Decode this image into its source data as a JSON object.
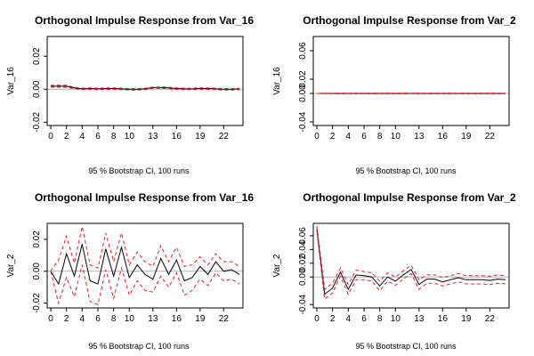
{
  "chart_data": [
    {
      "type": "line",
      "title": "Orthogonal Impulse Response from Var_16",
      "ylabel": "Var_16",
      "xlabel": "95 % Bootstrap CI,  100 runs",
      "x": [
        0,
        1,
        2,
        3,
        4,
        5,
        6,
        7,
        8,
        9,
        10,
        11,
        12,
        13,
        14,
        15,
        16,
        17,
        18,
        19,
        20,
        21,
        22,
        23,
        24
      ],
      "xticks": [
        0,
        2,
        4,
        6,
        8,
        10,
        13,
        16,
        19,
        22
      ],
      "xlim": [
        0,
        24
      ],
      "ylim": [
        -0.022,
        0.032
      ],
      "yticks": [
        -0.02,
        0.0,
        0.02
      ],
      "ytick_labels": [
        "-0.02",
        "0.00",
        "0.02"
      ],
      "zero_line": true,
      "series": [
        {
          "role": "response",
          "color": "#000000",
          "values": [
            0.0018,
            0.0018,
            0.0018,
            0.0008,
            0.0002,
            0.0004,
            0.0002,
            0.0004,
            0.0004,
            0.0002,
            0.0,
            0.0,
            0.0002,
            0.001,
            0.001,
            0.0008,
            0.0004,
            0.0002,
            0.0002,
            0.0004,
            0.0004,
            0.0002,
            0.0,
            0.0,
            0.0002
          ]
        },
        {
          "role": "upper",
          "color": "#e8202a",
          "values": [
            0.0024,
            0.0024,
            0.0024,
            0.0012,
            0.0006,
            0.0008,
            0.0006,
            0.0008,
            0.0008,
            0.0006,
            0.0004,
            0.0004,
            0.0006,
            0.0014,
            0.0014,
            0.0012,
            0.0008,
            0.0006,
            0.0006,
            0.0008,
            0.0008,
            0.0006,
            0.0004,
            0.0004,
            0.0006
          ]
        },
        {
          "role": "lower",
          "color": "#e8202a",
          "values": [
            0.0012,
            0.0012,
            0.0012,
            0.0003,
            -0.0003,
            -0.0001,
            -0.0003,
            -0.0001,
            -0.0001,
            -0.0003,
            -0.0005,
            -0.0005,
            -0.0003,
            0.0005,
            0.0005,
            0.0003,
            -0.0001,
            -0.0003,
            -0.0003,
            -0.0001,
            -0.0001,
            -0.0003,
            -0.0005,
            -0.0005,
            -0.0003
          ]
        }
      ]
    },
    {
      "type": "line",
      "title": "Orthogonal Impulse Response from Var_2",
      "ylabel": "Var_16",
      "xlabel": "95 % Bootstrap CI,  100 runs",
      "x": [
        0,
        1,
        2,
        3,
        4,
        5,
        6,
        7,
        8,
        9,
        10,
        11,
        12,
        13,
        14,
        15,
        16,
        17,
        18,
        19,
        20,
        21,
        22,
        23,
        24
      ],
      "xticks": [
        0,
        2,
        4,
        6,
        8,
        10,
        13,
        16,
        19,
        22
      ],
      "xlim": [
        0,
        24
      ],
      "ylim": [
        -0.045,
        0.08
      ],
      "yticks": [
        -0.04,
        0.0,
        0.02,
        0.06
      ],
      "ytick_labels": [
        "-0.04",
        "0.00",
        "0.02",
        "0.06"
      ],
      "zero_line": true,
      "series": [
        {
          "role": "response",
          "color": "#000000",
          "values": [
            0.0,
            0.0,
            0.0,
            0.0,
            0.0,
            0.0,
            0.0,
            0.0,
            0.0,
            0.0,
            0.0,
            0.0,
            0.0,
            0.0,
            0.0,
            0.0,
            0.0,
            0.0,
            0.0,
            0.0,
            0.0,
            0.0,
            0.0,
            0.0,
            0.0
          ]
        },
        {
          "role": "upper",
          "color": "#e8202a",
          "values": [
            0.0,
            0.0004,
            0.0004,
            0.0005,
            0.0004,
            0.0005,
            0.0004,
            0.0005,
            0.0004,
            0.0005,
            0.0004,
            0.0005,
            0.0004,
            0.0005,
            0.0004,
            0.0005,
            0.0004,
            0.0005,
            0.0004,
            0.0005,
            0.0004,
            0.0005,
            0.0004,
            0.0005,
            0.0004
          ]
        },
        {
          "role": "lower",
          "color": "#e8202a",
          "values": [
            0.0,
            -0.0004,
            -0.0004,
            -0.0005,
            -0.0004,
            -0.0005,
            -0.0004,
            -0.0005,
            -0.0004,
            -0.0005,
            -0.0004,
            -0.0005,
            -0.0004,
            -0.0005,
            -0.0004,
            -0.0005,
            -0.0004,
            -0.0005,
            -0.0004,
            -0.0005,
            -0.0004,
            -0.0005,
            -0.0004,
            -0.0005,
            -0.0004
          ]
        }
      ]
    },
    {
      "type": "line",
      "title": "Orthogonal Impulse Response from Var_16",
      "ylabel": "Var_2",
      "xlabel": "95 % Bootstrap CI,  100 runs",
      "x": [
        0,
        1,
        2,
        3,
        4,
        5,
        6,
        7,
        8,
        9,
        10,
        11,
        12,
        13,
        14,
        15,
        16,
        17,
        18,
        19,
        20,
        21,
        22,
        23,
        24
      ],
      "xticks": [
        0,
        2,
        4,
        6,
        8,
        10,
        13,
        16,
        19,
        22
      ],
      "xlim": [
        0,
        24
      ],
      "ylim": [
        -0.023,
        0.03
      ],
      "yticks": [
        -0.02,
        0.0,
        0.02
      ],
      "ytick_labels": [
        "-0.02",
        "0.00",
        "0.02"
      ],
      "zero_line": true,
      "series": [
        {
          "role": "response",
          "color": "#000000",
          "values": [
            0.0,
            -0.008,
            0.011,
            -0.003,
            0.017,
            -0.006,
            -0.008,
            0.014,
            -0.003,
            0.015,
            -0.004,
            0.004,
            -0.002,
            -0.005,
            0.008,
            -0.002,
            0.007,
            -0.006,
            -0.004,
            0.003,
            -0.002,
            0.006,
            0.0,
            0.001,
            -0.002
          ]
        },
        {
          "role": "upper",
          "color": "#e8202a",
          "values": [
            0.0,
            0.007,
            0.022,
            0.005,
            0.028,
            0.004,
            0.002,
            0.024,
            0.006,
            0.024,
            0.004,
            0.012,
            0.006,
            0.003,
            0.016,
            0.006,
            0.015,
            0.003,
            0.004,
            0.009,
            0.004,
            0.011,
            0.006,
            0.006,
            0.003
          ]
        },
        {
          "role": "lower",
          "color": "#e8202a",
          "values": [
            0.0,
            -0.02,
            -0.004,
            -0.016,
            0.004,
            -0.019,
            -0.021,
            0.001,
            -0.017,
            0.002,
            -0.015,
            -0.006,
            -0.012,
            -0.013,
            -0.003,
            -0.01,
            -0.001,
            -0.015,
            -0.012,
            -0.005,
            -0.009,
            -0.001,
            -0.006,
            -0.005,
            -0.008
          ]
        }
      ]
    },
    {
      "type": "line",
      "title": "Orthogonal Impulse Response from Var_2",
      "ylabel": "Var_2",
      "xlabel": "95 % Bootstrap CI,  100 runs",
      "x": [
        0,
        1,
        2,
        3,
        4,
        5,
        6,
        7,
        8,
        9,
        10,
        11,
        12,
        13,
        14,
        15,
        16,
        17,
        18,
        19,
        20,
        21,
        22,
        23,
        24
      ],
      "xticks": [
        0,
        2,
        4,
        6,
        8,
        10,
        13,
        16,
        19,
        22
      ],
      "xlim": [
        0,
        24
      ],
      "ylim": [
        -0.045,
        0.078
      ],
      "yticks": [
        -0.04,
        0.0,
        0.02,
        0.04,
        0.06
      ],
      "ytick_labels": [
        "-0.04",
        "0.00",
        "0.02",
        "0.04",
        "0.06"
      ],
      "zero_line": true,
      "series": [
        {
          "role": "response",
          "color": "#000000",
          "values": [
            0.07,
            -0.025,
            -0.016,
            0.007,
            -0.018,
            0.003,
            0.002,
            0.0,
            -0.013,
            0.0,
            -0.006,
            0.003,
            0.011,
            -0.011,
            -0.003,
            -0.003,
            -0.007,
            -0.004,
            -0.001,
            -0.004,
            -0.004,
            -0.004,
            -0.005,
            -0.003,
            -0.004
          ]
        },
        {
          "role": "upper",
          "color": "#e8202a",
          "values": [
            0.074,
            -0.018,
            -0.009,
            0.013,
            -0.011,
            0.01,
            0.008,
            0.006,
            -0.006,
            0.006,
            0.0,
            0.009,
            0.017,
            -0.004,
            0.003,
            0.003,
            -0.001,
            0.002,
            0.005,
            0.002,
            0.002,
            0.002,
            0.001,
            0.003,
            0.002
          ]
        },
        {
          "role": "lower",
          "color": "#e8202a",
          "values": [
            0.066,
            -0.032,
            -0.023,
            0.001,
            -0.025,
            -0.004,
            -0.004,
            -0.006,
            -0.02,
            -0.006,
            -0.012,
            -0.003,
            0.005,
            -0.018,
            -0.009,
            -0.009,
            -0.013,
            -0.01,
            -0.007,
            -0.01,
            -0.01,
            -0.01,
            -0.011,
            -0.009,
            -0.01
          ]
        }
      ]
    }
  ]
}
